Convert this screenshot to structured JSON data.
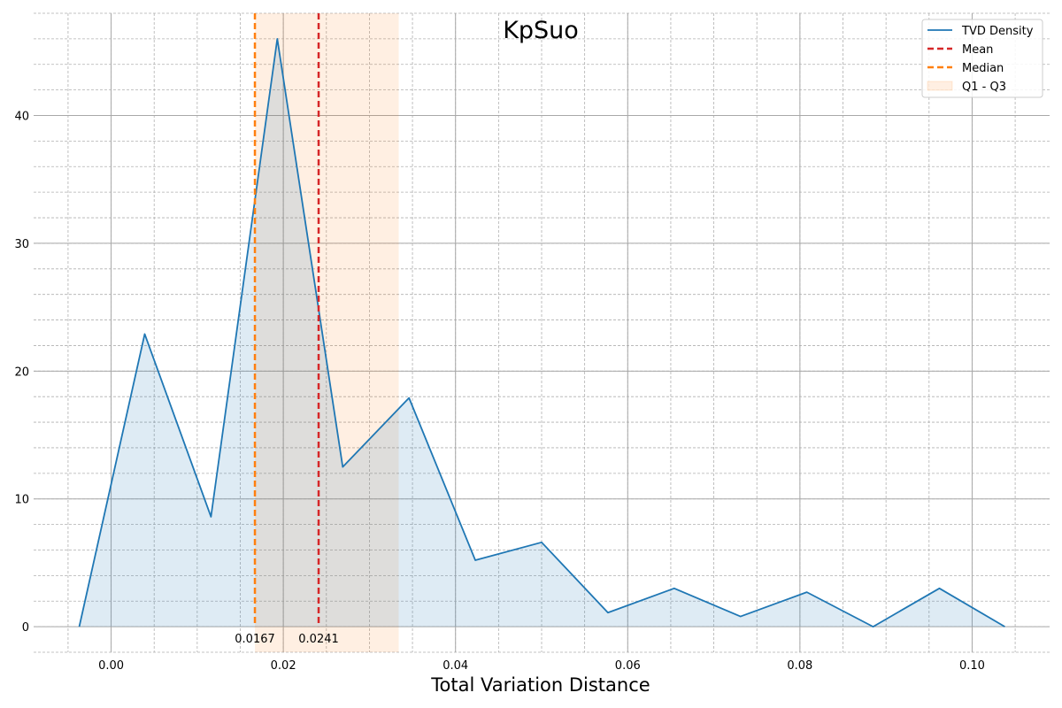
{
  "chart_data": {
    "type": "line",
    "title": "KpSuo",
    "xlabel": "Total Variation Distance",
    "ylabel": "",
    "xlim": [
      -0.009,
      0.109
    ],
    "ylim": [
      -2.0,
      48.0
    ],
    "x_ticks": [
      0.0,
      0.02,
      0.04,
      0.06,
      0.08,
      0.1
    ],
    "x_tick_labels": [
      "0.00",
      "0.02",
      "0.04",
      "0.06",
      "0.08",
      "0.10"
    ],
    "x_minor_step": 0.005,
    "y_ticks": [
      0,
      10,
      20,
      30,
      40
    ],
    "y_tick_labels": [
      "0",
      "10",
      "20",
      "30",
      "40"
    ],
    "y_minor_step": 2,
    "grid": true,
    "legend_position": "top-right",
    "series": [
      {
        "name": "TVD Density",
        "color": "#1f77b4",
        "fill_color": "#1f77b4",
        "x": [
          -0.0037,
          0.0039,
          0.0116,
          0.0193,
          0.0269,
          0.0346,
          0.0423,
          0.05,
          0.0577,
          0.0654,
          0.0731,
          0.0808,
          0.0885,
          0.0962,
          0.1038
        ],
        "y": [
          0.0,
          22.9,
          8.6,
          46.0,
          12.5,
          17.9,
          5.2,
          6.6,
          1.1,
          3.0,
          0.8,
          2.7,
          0.0,
          3.0,
          0.0
        ]
      }
    ],
    "reference_lines": [
      {
        "name": "Mean",
        "x": 0.0241,
        "color": "#d62728",
        "label": "0.0241"
      },
      {
        "name": "Median",
        "x": 0.0167,
        "color": "#ff7f0e",
        "label": "0.0167"
      }
    ],
    "band": {
      "name": "Q1 - Q3",
      "x_start": 0.0167,
      "x_end": 0.0334,
      "color": "#ff7f0e"
    },
    "legend": [
      "TVD Density",
      "Mean",
      "Median",
      "Q1 - Q3"
    ]
  }
}
